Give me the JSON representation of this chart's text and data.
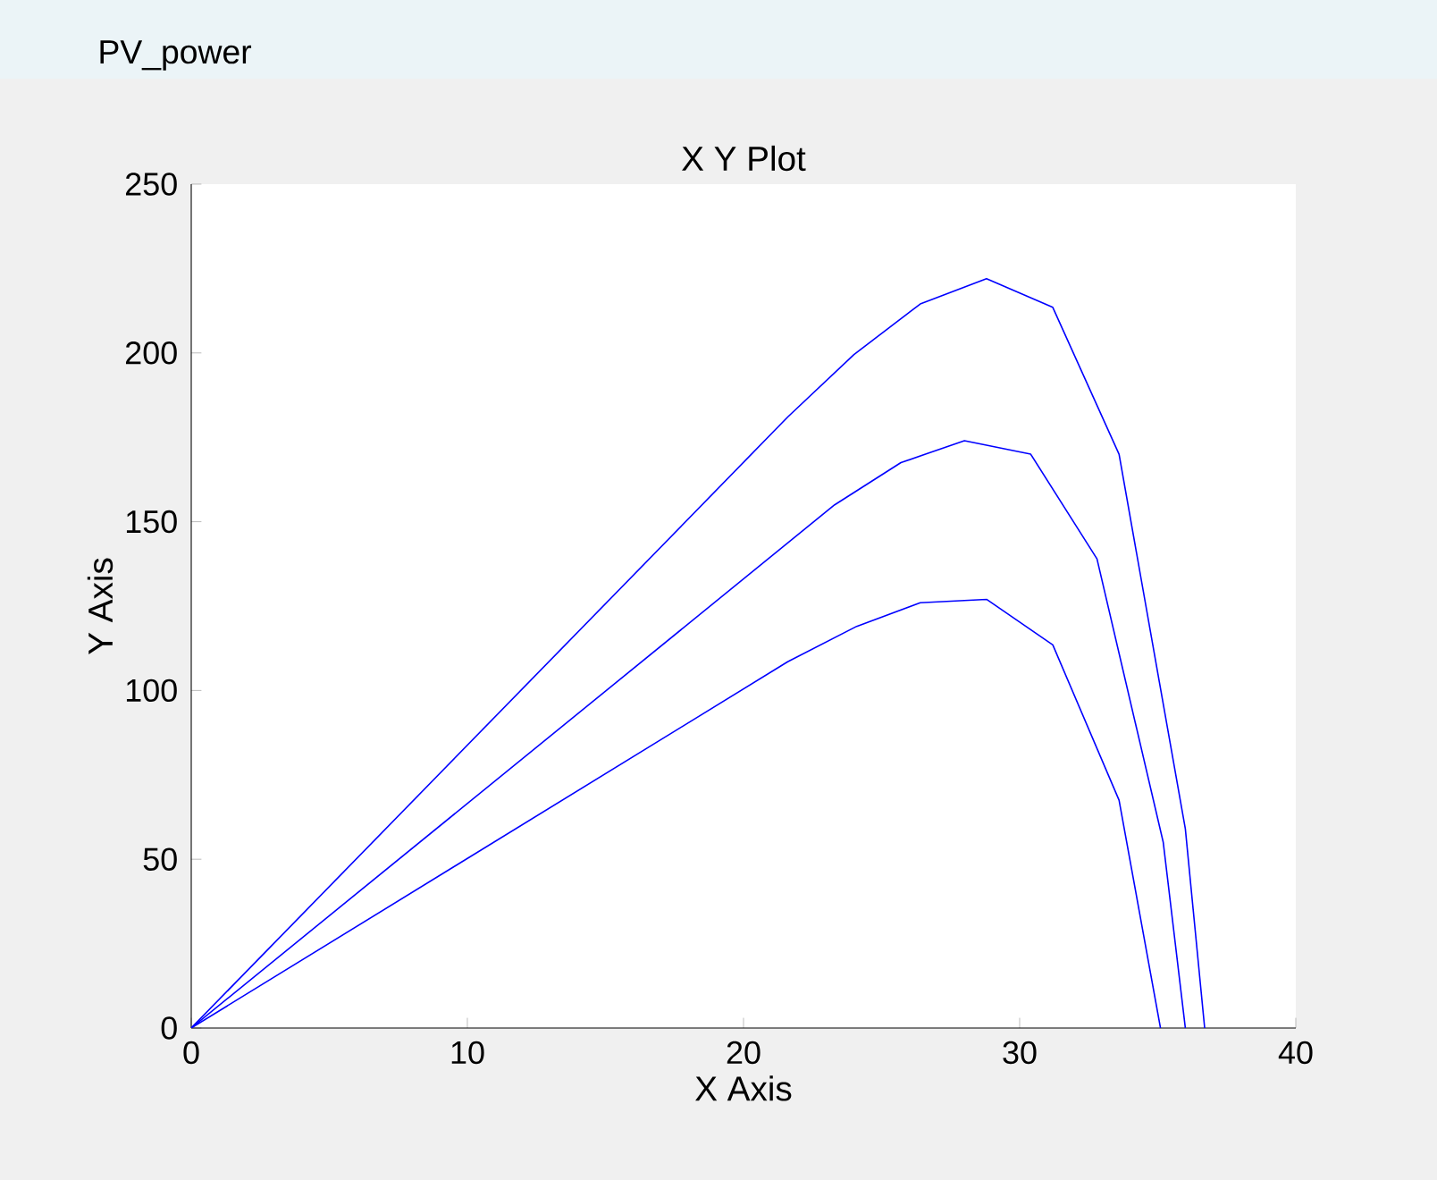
{
  "chart_data": {
    "type": "line",
    "title": "X Y Plot",
    "xlabel": "X Axis",
    "ylabel": "Y Axis",
    "annotations": [
      "PV_power"
    ],
    "series": [
      {
        "color": "#0000ff",
        "x": [
          0,
          21.6,
          24.0,
          26.4,
          28.8,
          31.2,
          33.6,
          36.0,
          36.7
        ],
        "values": [
          0,
          181,
          199.5,
          214.5,
          222,
          213.5,
          170,
          59,
          0
        ]
      },
      {
        "color": "#0000ff",
        "x": [
          0,
          23.3,
          25.7,
          28.0,
          30.4,
          32.8,
          35.2,
          36.0
        ],
        "values": [
          0,
          155,
          167.5,
          174,
          170,
          139,
          55,
          0
        ]
      },
      {
        "color": "#0000ff",
        "x": [
          0,
          21.6,
          24.1,
          26.4,
          28.8,
          31.2,
          33.6,
          35.1
        ],
        "values": [
          0,
          108.5,
          119,
          126,
          127,
          113.5,
          67.5,
          0
        ]
      }
    ],
    "xlim": [
      0,
      40
    ],
    "ylim": [
      0,
      250
    ],
    "xticks": [
      0,
      10,
      20,
      30,
      40
    ],
    "yticks": [
      0,
      50,
      100,
      150,
      200,
      250
    ],
    "grid": false,
    "marker": "none",
    "line_style": "solid"
  }
}
